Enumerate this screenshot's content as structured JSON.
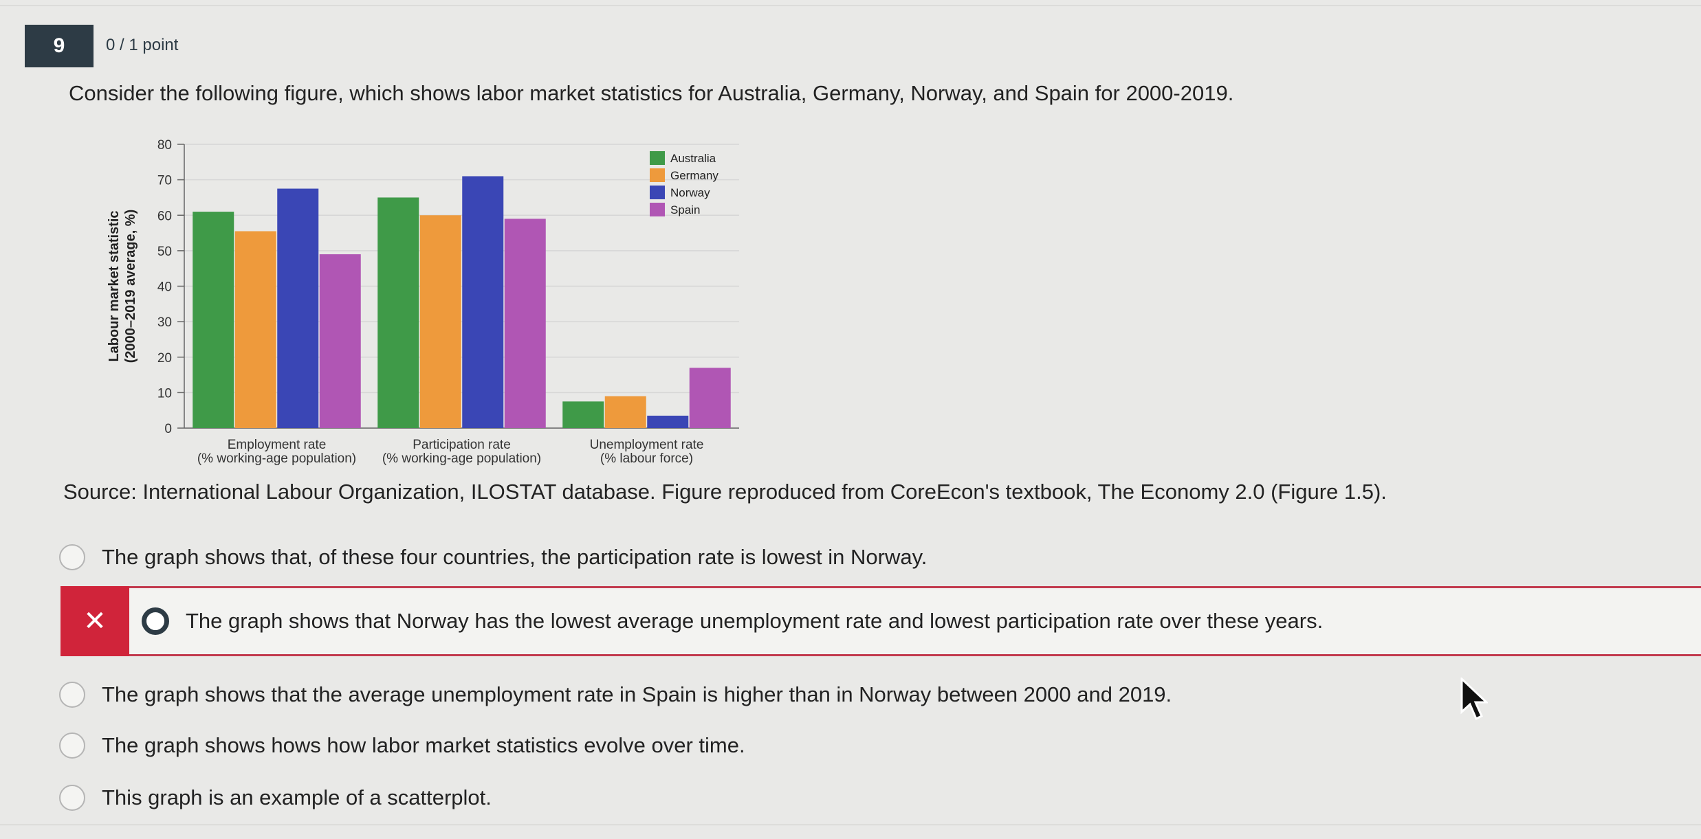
{
  "question": {
    "number": "9",
    "points": "0 / 1 point",
    "text": "Consider the following figure, which shows labor market statistics for Australia, Germany, Norway, and Spain for 2000-2019.",
    "source": "Source: International Labour Organization, ILOSTAT database. Figure reproduced from CoreEcon's textbook, The Economy 2.0 (Figure 1.5)."
  },
  "options": [
    {
      "label": "The graph shows that, of these four countries, the participation rate is lowest in Norway.",
      "selected": false
    },
    {
      "label": "The graph shows that Norway has the lowest average unemployment rate and lowest participation rate over these years.",
      "selected": true,
      "result": "incorrect"
    },
    {
      "label": "The graph shows that the average unemployment rate in Spain is higher than in Norway between 2000 and 2019.",
      "selected": false
    },
    {
      "label": "The graph shows hows how labor market statistics evolve over time.",
      "selected": false
    },
    {
      "label": "This graph is an example of a scatterplot.",
      "selected": false
    }
  ],
  "icons": {
    "incorrect": "close-x-icon",
    "cursor": "mouse-pointer-icon"
  },
  "chart_data": {
    "type": "bar",
    "categories": [
      [
        "Employment rate",
        "(% working-age population)"
      ],
      [
        "Participation rate",
        "(% working-age population)"
      ],
      [
        "Unemployment rate",
        "(% labour force)"
      ]
    ],
    "series": [
      {
        "name": "Australia",
        "color": "#3f9a48",
        "values": [
          61,
          65,
          7.5
        ]
      },
      {
        "name": "Germany",
        "color": "#ee9a3c",
        "values": [
          55.5,
          60,
          9
        ]
      },
      {
        "name": "Norway",
        "color": "#3a46b5",
        "values": [
          67.5,
          71,
          3.5
        ]
      },
      {
        "name": "Spain",
        "color": "#b056b4",
        "values": [
          49,
          59,
          17
        ]
      }
    ],
    "ylabel": [
      "Labour market statistic",
      "(2000–2019 average, %)"
    ],
    "ylim": [
      0,
      80
    ],
    "yticks": [
      0,
      10,
      20,
      30,
      40,
      50,
      60,
      70,
      80
    ],
    "legend_position": "top-right",
    "grid": true
  }
}
